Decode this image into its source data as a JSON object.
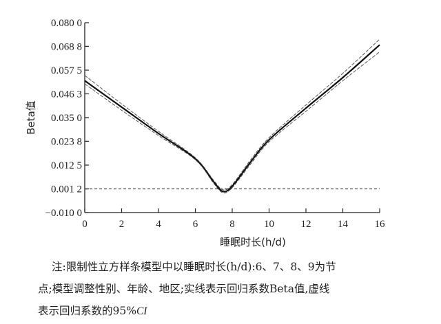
{
  "chart_data": {
    "type": "line",
    "xlabel": "睡眠时长(h/d)",
    "ylabel": "Beta值",
    "xlim": [
      0,
      16
    ],
    "ylim": [
      -0.01,
      0.08
    ],
    "x_ticks": [
      0,
      2,
      4,
      6,
      8,
      10,
      12,
      14,
      16
    ],
    "x_tick_labels": [
      "0",
      "2",
      "4",
      "6",
      "8",
      "10",
      "12",
      "14",
      "16"
    ],
    "y_ticks": [
      -0.01,
      0.0012,
      0.0125,
      0.0238,
      0.035,
      0.0463,
      0.0575,
      0.0688,
      0.08
    ],
    "y_tick_labels": [
      "−0.010 0",
      "0.001 2",
      "0.012 5",
      "0.023 8",
      "0.035 0",
      "0.046 3",
      "0.057 5",
      "0.068 8",
      "0.080 0"
    ],
    "reference_line_y": 0.0012,
    "knots": [
      6,
      7,
      8,
      9
    ],
    "series": [
      {
        "style": "solid",
        "x": [
          0,
          2,
          4,
          6,
          7,
          7.5,
          8,
          9,
          10,
          12,
          14,
          16
        ],
        "values": [
          0.0525,
          0.04,
          0.0275,
          0.0155,
          0.0045,
          0.0,
          0.0025,
          0.014,
          0.0245,
          0.0395,
          0.054,
          0.0695
        ]
      },
      {
        "style": "dashed",
        "x": [
          0,
          2,
          4,
          6,
          7,
          7.5,
          8,
          9,
          10,
          12,
          14,
          16
        ],
        "values": [
          0.055,
          0.0415,
          0.0285,
          0.016,
          0.0052,
          0.0008,
          0.0033,
          0.015,
          0.0255,
          0.041,
          0.056,
          0.0722
        ]
      },
      {
        "style": "dashed",
        "x": [
          0,
          2,
          4,
          6,
          7,
          7.5,
          8,
          9,
          10,
          12,
          14,
          16
        ],
        "values": [
          0.051,
          0.0385,
          0.0265,
          0.015,
          0.0038,
          -0.0006,
          0.0018,
          0.013,
          0.0235,
          0.038,
          0.0525,
          0.0662
        ]
      }
    ]
  },
  "caption": {
    "line1": "注:限制性立方样条模型中以睡眠时长(h/d):6、7、8、9为节",
    "line2": "点;模型调整性别、年龄、地区;实线表示回归系数Beta值,虚线",
    "line3_prefix": "表示回归系数的95%",
    "line3_ci": "CI"
  }
}
